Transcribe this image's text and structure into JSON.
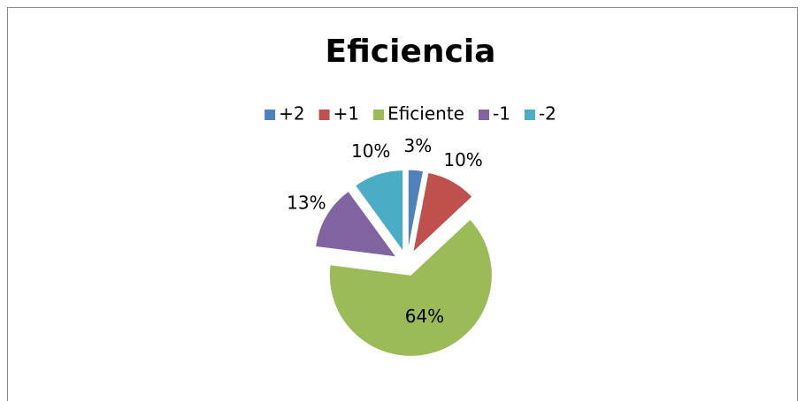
{
  "chart_data": {
    "type": "pie",
    "title": "Eficiencia",
    "categories": [
      "+2",
      "+1",
      "Eficiente",
      "-1",
      "-2"
    ],
    "values": [
      3,
      10,
      64,
      13,
      10
    ],
    "value_labels": [
      "3%",
      "10%",
      "64%",
      "13%",
      "10%"
    ],
    "colors": [
      "#4f81bd",
      "#c0504d",
      "#9bbb59",
      "#8064a2",
      "#4bacc6"
    ],
    "legend": "top",
    "exploded": true
  }
}
